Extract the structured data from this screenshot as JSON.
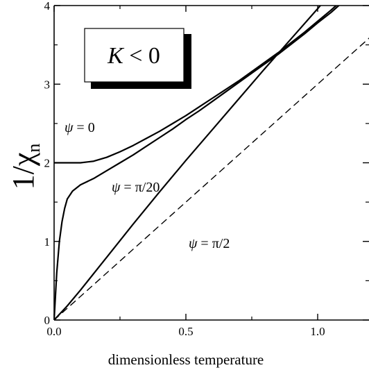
{
  "chart_data": {
    "type": "line",
    "title": "",
    "xlabel": "dimensionless temperature",
    "ylabel": "1/χ",
    "ylabel_sub": "n",
    "xlim": [
      0.0,
      1.2
    ],
    "ylim": [
      0,
      4
    ],
    "x_ticks": [
      0.0,
      0.5,
      1.0
    ],
    "x_tick_labels": [
      "0.0",
      "0.5",
      "1.0"
    ],
    "y_ticks": [
      0,
      1,
      2,
      3,
      4
    ],
    "y_tick_labels": [
      "0",
      "1",
      "2",
      "3",
      "4"
    ],
    "grid": false,
    "inset_box": {
      "var": "K",
      "rest": " < 0"
    },
    "series": [
      {
        "label_var": "ψ",
        "label_rest": " = 0",
        "dash": false,
        "points": [
          [
            0,
            2
          ],
          [
            0.05,
            2
          ],
          [
            0.1,
            2.0
          ],
          [
            0.15,
            2.02
          ],
          [
            0.2,
            2.07
          ],
          [
            0.25,
            2.14
          ],
          [
            0.3,
            2.22
          ],
          [
            0.35,
            2.31
          ],
          [
            0.4,
            2.4
          ],
          [
            0.45,
            2.5
          ],
          [
            0.5,
            2.6
          ],
          [
            0.55,
            2.71
          ],
          [
            0.6,
            2.82
          ],
          [
            0.65,
            2.93
          ],
          [
            0.7,
            3.04
          ],
          [
            0.75,
            3.16
          ],
          [
            0.8,
            3.28
          ],
          [
            0.85,
            3.4
          ],
          [
            0.9,
            3.53
          ],
          [
            0.95,
            3.66
          ],
          [
            1.0,
            3.8
          ],
          [
            1.05,
            3.94
          ],
          [
            1.07,
            4.0
          ]
        ]
      },
      {
        "label_var": "ψ",
        "label_rest": " = π/20",
        "dash": false,
        "points": [
          [
            0,
            0
          ],
          [
            0.005,
            0.3
          ],
          [
            0.01,
            0.6
          ],
          [
            0.02,
            1.0
          ],
          [
            0.03,
            1.25
          ],
          [
            0.04,
            1.42
          ],
          [
            0.05,
            1.54
          ],
          [
            0.07,
            1.64
          ],
          [
            0.1,
            1.72
          ],
          [
            0.15,
            1.8
          ],
          [
            0.2,
            1.9
          ],
          [
            0.25,
            2.0
          ],
          [
            0.3,
            2.1
          ],
          [
            0.35,
            2.21
          ],
          [
            0.4,
            2.32
          ],
          [
            0.45,
            2.43
          ],
          [
            0.5,
            2.55
          ],
          [
            0.55,
            2.66
          ],
          [
            0.6,
            2.78
          ],
          [
            0.65,
            2.9
          ],
          [
            0.7,
            3.02
          ],
          [
            0.75,
            3.14
          ],
          [
            0.8,
            3.26
          ],
          [
            0.85,
            3.38
          ],
          [
            0.9,
            3.51
          ],
          [
            0.95,
            3.64
          ],
          [
            1.0,
            3.78
          ],
          [
            1.05,
            3.91
          ],
          [
            1.08,
            4.0
          ]
        ]
      },
      {
        "label_var": "ψ",
        "label_rest": " = π/2",
        "dash": false,
        "points": [
          [
            0,
            0
          ],
          [
            0.05,
            0.18
          ],
          [
            0.1,
            0.38
          ],
          [
            0.2,
            0.8
          ],
          [
            0.3,
            1.22
          ],
          [
            0.4,
            1.63
          ],
          [
            0.5,
            2.03
          ],
          [
            0.6,
            2.42
          ],
          [
            0.7,
            2.81
          ],
          [
            0.8,
            3.2
          ],
          [
            0.9,
            3.58
          ],
          [
            1.0,
            3.96
          ],
          [
            1.01,
            4.0
          ]
        ]
      },
      {
        "label_var": "",
        "label_rest": "",
        "dash": true,
        "points": [
          [
            0,
            0
          ],
          [
            1.2,
            3.6
          ]
        ]
      }
    ]
  }
}
